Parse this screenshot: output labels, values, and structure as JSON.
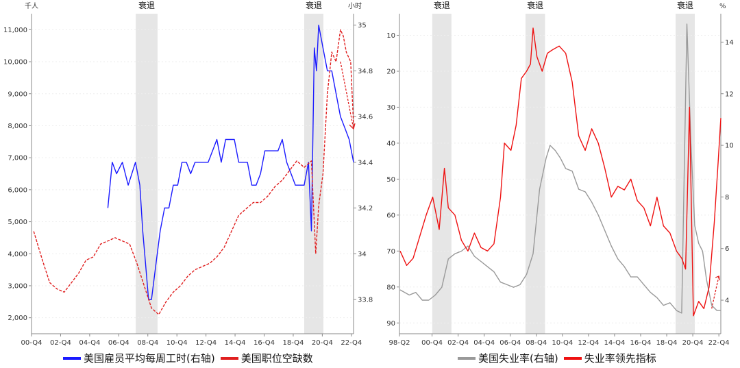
{
  "chart_data": [
    {
      "type": "line",
      "left_axis_unit": "千人",
      "right_axis_unit": "小时",
      "recession_label": "衰退",
      "recessions": [
        [
          "2007-12",
          "2009-06"
        ],
        [
          "2020-02",
          "2020-04"
        ]
      ],
      "x_ticks": [
        "00-Q4",
        "02-Q4",
        "04-Q4",
        "06-Q4",
        "08-Q4",
        "10-Q4",
        "12-Q4",
        "14-Q4",
        "16-Q4",
        "18-Q4",
        "20-Q4",
        "22-Q4"
      ],
      "ylim_left": [
        1500,
        11500
      ],
      "ylim_right": [
        33.65,
        35.05
      ],
      "yticks_left": [
        "2,000",
        "3,000",
        "4,000",
        "5,000",
        "6,000",
        "7,000",
        "8,000",
        "9,000",
        "10,000",
        "11,000"
      ],
      "yticks_right": [
        "33.8",
        "34",
        "34.2",
        "34.4",
        "34.6",
        "34.8",
        "35"
      ],
      "series": [
        {
          "name": "美国雇员平均每周工时(右轴)",
          "axis": "right",
          "color": "#1a1aff",
          "x": [
            2006.0,
            2006.3,
            2006.6,
            2007.0,
            2007.4,
            2007.9,
            2008.2,
            2008.4,
            2008.6,
            2008.8,
            2009.0,
            2009.3,
            2009.6,
            2009.9,
            2010.2,
            2010.5,
            2010.8,
            2011.1,
            2011.4,
            2011.7,
            2012.0,
            2012.3,
            2012.6,
            2012.9,
            2013.2,
            2013.5,
            2013.8,
            2014.1,
            2014.4,
            2014.7,
            2015.0,
            2015.3,
            2015.6,
            2015.9,
            2016.2,
            2016.5,
            2016.8,
            2017.1,
            2017.4,
            2017.7,
            2018.0,
            2018.3,
            2018.6,
            2018.9,
            2019.2,
            2019.5,
            2019.8,
            2020.0,
            2020.2,
            2020.35,
            2020.5,
            2020.8,
            2021.1,
            2021.4,
            2021.7,
            2022.0,
            2022.3,
            2022.6,
            2022.9
          ],
          "y": [
            34.2,
            34.4,
            34.35,
            34.4,
            34.3,
            34.4,
            34.3,
            34.1,
            33.95,
            33.8,
            33.8,
            33.95,
            34.1,
            34.2,
            34.2,
            34.3,
            34.3,
            34.4,
            34.4,
            34.35,
            34.4,
            34.4,
            34.4,
            34.4,
            34.45,
            34.5,
            34.4,
            34.5,
            34.5,
            34.5,
            34.4,
            34.4,
            34.4,
            34.3,
            34.3,
            34.35,
            34.45,
            34.45,
            34.45,
            34.45,
            34.5,
            34.4,
            34.35,
            34.3,
            34.3,
            34.3,
            34.4,
            34.1,
            34.9,
            34.8,
            35.0,
            34.9,
            34.8,
            34.8,
            34.7,
            34.6,
            34.55,
            34.5,
            34.4
          ]
        },
        {
          "name": "美国职位空缺数",
          "axis": "left",
          "color": "#e02020",
          "x": [
            2000.9,
            2001.5,
            2002.0,
            2002.5,
            2003.0,
            2003.5,
            2004.0,
            2004.5,
            2005.0,
            2005.5,
            2006.0,
            2006.5,
            2007.0,
            2007.5,
            2008.0,
            2008.5,
            2009.0,
            2009.5,
            2010.0,
            2010.5,
            2011.0,
            2011.5,
            2012.0,
            2012.5,
            2013.0,
            2013.5,
            2014.0,
            2014.5,
            2015.0,
            2015.5,
            2016.0,
            2016.5,
            2017.0,
            2017.5,
            2018.0,
            2018.5,
            2019.0,
            2019.5,
            2020.0,
            2020.3,
            2020.5,
            2020.8,
            2021.1,
            2021.4,
            2021.7,
            2022.0,
            2022.2,
            2022.4,
            2022.7,
            2022.9
          ],
          "y": [
            4700,
            3800,
            3100,
            2900,
            2800,
            3100,
            3400,
            3800,
            3900,
            4300,
            4400,
            4500,
            4400,
            4300,
            3700,
            3000,
            2300,
            2100,
            2500,
            2800,
            3000,
            3300,
            3500,
            3600,
            3700,
            3900,
            4200,
            4700,
            5200,
            5400,
            5600,
            5600,
            5800,
            6100,
            6300,
            6600,
            6900,
            6700,
            6900,
            4000,
            5500,
            6500,
            9000,
            10300,
            10000,
            11000,
            10800,
            10300,
            10000,
            8000
          ]
        }
      ]
    },
    {
      "type": "line",
      "right_axis_unit": "%",
      "recession_label": "衰退",
      "recessions": [
        [
          "2001-03",
          "2001-11"
        ],
        [
          "2007-12",
          "2009-06"
        ],
        [
          "2020-02",
          "2020-04"
        ]
      ],
      "x_ticks": [
        "98-Q2",
        "00-Q4",
        "02-Q4",
        "04-Q4",
        "06-Q4",
        "08-Q4",
        "10-Q4",
        "12-Q4",
        "14-Q4",
        "16-Q4",
        "18-Q4",
        "20-Q4",
        "22-Q4"
      ],
      "ylim_left": [
        93,
        4
      ],
      "ylim_right": [
        2.7,
        15.1
      ],
      "yticks_left": [
        "10",
        "20",
        "30",
        "40",
        "50",
        "60",
        "70",
        "80",
        "90"
      ],
      "yticks_right": [
        "4",
        "6",
        "8",
        "10",
        "12",
        "14"
      ],
      "series": [
        {
          "name": "美国失业率(右轴)",
          "axis": "right",
          "color": "#999999",
          "x": [
            1998.3,
            1999.0,
            1999.5,
            2000.0,
            2000.5,
            2001.0,
            2001.5,
            2002.0,
            2002.5,
            2003.0,
            2003.5,
            2004.0,
            2004.5,
            2005.0,
            2005.5,
            2006.0,
            2006.5,
            2007.0,
            2007.5,
            2008.0,
            2008.5,
            2009.0,
            2009.5,
            2009.8,
            2010.2,
            2010.6,
            2011.0,
            2011.5,
            2012.0,
            2012.5,
            2013.0,
            2013.5,
            2014.0,
            2014.5,
            2015.0,
            2015.5,
            2016.0,
            2016.5,
            2017.0,
            2017.5,
            2018.0,
            2018.5,
            2019.0,
            2019.5,
            2019.9,
            2020.3,
            2020.6,
            2020.9,
            2021.2,
            2021.5,
            2021.8,
            2022.2,
            2022.6,
            2022.9
          ],
          "y": [
            4.4,
            4.2,
            4.3,
            4.0,
            4.0,
            4.2,
            4.5,
            5.6,
            5.8,
            5.9,
            6.1,
            5.7,
            5.5,
            5.3,
            5.1,
            4.7,
            4.6,
            4.5,
            4.6,
            5.0,
            5.8,
            8.3,
            9.5,
            10.0,
            9.8,
            9.5,
            9.1,
            9.0,
            8.3,
            8.2,
            7.8,
            7.3,
            6.7,
            6.1,
            5.6,
            5.3,
            4.9,
            4.9,
            4.6,
            4.3,
            4.1,
            3.8,
            3.9,
            3.6,
            3.5,
            14.7,
            10.2,
            6.9,
            6.2,
            5.9,
            4.8,
            3.8,
            3.6,
            3.6
          ]
        },
        {
          "name": "失业率领先指标",
          "axis": "left",
          "color": "#ee1111",
          "x": [
            1998.3,
            1998.8,
            1999.3,
            1999.8,
            2000.3,
            2000.8,
            2001.3,
            2001.7,
            2002.0,
            2002.5,
            2003.0,
            2003.5,
            2004.0,
            2004.5,
            2005.0,
            2005.5,
            2006.0,
            2006.3,
            2006.8,
            2007.2,
            2007.6,
            2008.0,
            2008.3,
            2008.5,
            2008.8,
            2009.2,
            2009.6,
            2010.0,
            2010.5,
            2011.0,
            2011.5,
            2012.0,
            2012.5,
            2013.0,
            2013.5,
            2014.0,
            2014.5,
            2015.0,
            2015.5,
            2016.0,
            2016.5,
            2017.0,
            2017.5,
            2018.0,
            2018.5,
            2019.0,
            2019.5,
            2019.9,
            2020.2,
            2020.5,
            2020.8,
            2021.2,
            2021.6,
            2022.0,
            2022.4,
            2022.7,
            2022.9
          ],
          "y": [
            70,
            74,
            72,
            66,
            60,
            55,
            64,
            47,
            58,
            60,
            67,
            70,
            65,
            69,
            70,
            68,
            55,
            40,
            42,
            35,
            22,
            20,
            18,
            8,
            16,
            20,
            15,
            14,
            13,
            15,
            23,
            38,
            42,
            36,
            40,
            47,
            55,
            52,
            53,
            50,
            56,
            58,
            63,
            55,
            63,
            65,
            70,
            72,
            75,
            30,
            88,
            84,
            86,
            80,
            62,
            45,
            33
          ]
        }
      ]
    }
  ],
  "legend": {
    "left": [
      "美国雇员平均每周工时(右轴)",
      "美国职位空缺数"
    ],
    "right": [
      "美国失业率(右轴)",
      "失业率领先指标"
    ]
  }
}
